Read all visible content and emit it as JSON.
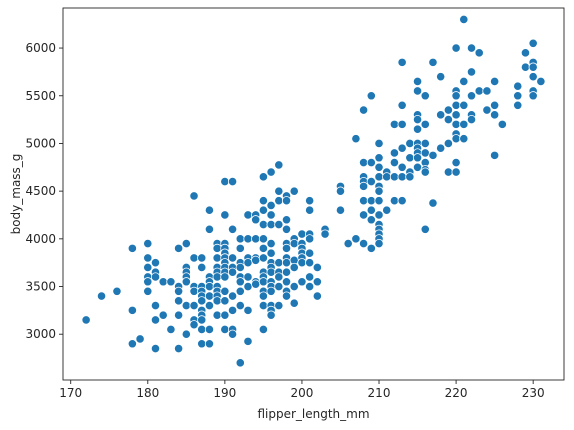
{
  "chart_data": {
    "type": "scatter",
    "xlabel": "flipper_length_mm",
    "ylabel": "body_mass_g",
    "xlim": [
      169,
      234
    ],
    "ylim": [
      2520,
      6420
    ],
    "xticks": [
      170,
      180,
      190,
      200,
      210,
      220,
      230
    ],
    "yticks": [
      3000,
      3500,
      4000,
      4500,
      5000,
      5500,
      6000
    ],
    "grid": false,
    "legend": "none",
    "marker_color": "#1f77b4",
    "points": [
      [
        172,
        3150
      ],
      [
        174,
        3400
      ],
      [
        176,
        3450
      ],
      [
        178,
        3250
      ],
      [
        178,
        2900
      ],
      [
        178,
        3900
      ],
      [
        179,
        2950
      ],
      [
        180,
        3950
      ],
      [
        180,
        3800
      ],
      [
        180,
        3700
      ],
      [
        180,
        3600
      ],
      [
        180,
        3550
      ],
      [
        180,
        3450
      ],
      [
        181,
        3750
      ],
      [
        181,
        3650
      ],
      [
        181,
        3600
      ],
      [
        181,
        3300
      ],
      [
        181,
        3150
      ],
      [
        181,
        2850
      ],
      [
        182,
        3200
      ],
      [
        182,
        3550
      ],
      [
        183,
        3050
      ],
      [
        183,
        3550
      ],
      [
        184,
        3900
      ],
      [
        184,
        3500
      ],
      [
        184,
        3450
      ],
      [
        184,
        3350
      ],
      [
        184,
        3200
      ],
      [
        184,
        2850
      ],
      [
        185,
        3950
      ],
      [
        185,
        3700
      ],
      [
        185,
        3650
      ],
      [
        185,
        3600
      ],
      [
        185,
        3550
      ],
      [
        185,
        3300
      ],
      [
        185,
        3000
      ],
      [
        186,
        4450
      ],
      [
        186,
        3800
      ],
      [
        186,
        3500
      ],
      [
        186,
        3450
      ],
      [
        186,
        3300
      ],
      [
        186,
        3150
      ],
      [
        186,
        3100
      ],
      [
        187,
        3800
      ],
      [
        187,
        3700
      ],
      [
        187,
        3500
      ],
      [
        187,
        3450
      ],
      [
        187,
        3400
      ],
      [
        187,
        3350
      ],
      [
        187,
        3250
      ],
      [
        187,
        3200
      ],
      [
        187,
        3150
      ],
      [
        187,
        3050
      ],
      [
        187,
        2900
      ],
      [
        188,
        4300
      ],
      [
        188,
        4100
      ],
      [
        188,
        3600
      ],
      [
        188,
        3550
      ],
      [
        188,
        3500
      ],
      [
        188,
        3400
      ],
      [
        188,
        3300
      ],
      [
        188,
        3050
      ],
      [
        188,
        2900
      ],
      [
        189,
        3950
      ],
      [
        189,
        3900
      ],
      [
        189,
        3800
      ],
      [
        189,
        3700
      ],
      [
        189,
        3650
      ],
      [
        189,
        3600
      ],
      [
        189,
        3500
      ],
      [
        189,
        3450
      ],
      [
        189,
        3400
      ],
      [
        189,
        3350
      ],
      [
        189,
        3200
      ],
      [
        190,
        4600
      ],
      [
        190,
        4250
      ],
      [
        190,
        3950
      ],
      [
        190,
        3900
      ],
      [
        190,
        3850
      ],
      [
        190,
        3800
      ],
      [
        190,
        3750
      ],
      [
        190,
        3700
      ],
      [
        190,
        3650
      ],
      [
        190,
        3600
      ],
      [
        190,
        3450
      ],
      [
        190,
        3350
      ],
      [
        190,
        3200
      ],
      [
        190,
        3050
      ],
      [
        191,
        4600
      ],
      [
        191,
        4100
      ],
      [
        191,
        3800
      ],
      [
        191,
        3700
      ],
      [
        191,
        3650
      ],
      [
        191,
        3400
      ],
      [
        191,
        3250
      ],
      [
        191,
        3050
      ],
      [
        191,
        3000
      ],
      [
        192,
        4000
      ],
      [
        192,
        3900
      ],
      [
        192,
        3750
      ],
      [
        192,
        3700
      ],
      [
        192,
        3600
      ],
      [
        192,
        3550
      ],
      [
        192,
        3450
      ],
      [
        192,
        3300
      ],
      [
        192,
        2700
      ],
      [
        193,
        4250
      ],
      [
        193,
        4000
      ],
      [
        193,
        3800
      ],
      [
        193,
        3750
      ],
      [
        193,
        3600
      ],
      [
        193,
        3500
      ],
      [
        193,
        3250
      ],
      [
        193,
        2925
      ],
      [
        194,
        4250
      ],
      [
        194,
        4200
      ],
      [
        194,
        4000
      ],
      [
        194,
        3800
      ],
      [
        194,
        3775
      ],
      [
        194,
        3550
      ],
      [
        194,
        3525
      ],
      [
        195,
        4650
      ],
      [
        195,
        4400
      ],
      [
        195,
        4300
      ],
      [
        195,
        4150
      ],
      [
        195,
        4000
      ],
      [
        195,
        3900
      ],
      [
        195,
        3800
      ],
      [
        195,
        3650
      ],
      [
        195,
        3600
      ],
      [
        195,
        3550
      ],
      [
        195,
        3450
      ],
      [
        195,
        3400
      ],
      [
        195,
        3300
      ],
      [
        195,
        3050
      ],
      [
        196,
        4700
      ],
      [
        196,
        4350
      ],
      [
        196,
        4250
      ],
      [
        196,
        4150
      ],
      [
        196,
        3950
      ],
      [
        196,
        3850
      ],
      [
        196,
        3750
      ],
      [
        196,
        3700
      ],
      [
        196,
        3650
      ],
      [
        196,
        3550
      ],
      [
        196,
        3500
      ],
      [
        196,
        3450
      ],
      [
        196,
        3300
      ],
      [
        196,
        3250
      ],
      [
        196,
        3200
      ],
      [
        197,
        4775
      ],
      [
        197,
        4500
      ],
      [
        197,
        4400
      ],
      [
        197,
        4150
      ],
      [
        197,
        3750
      ],
      [
        197,
        3650
      ],
      [
        197,
        3600
      ],
      [
        197,
        3500
      ],
      [
        197,
        3300
      ],
      [
        198,
        4450
      ],
      [
        198,
        4400
      ],
      [
        198,
        4200
      ],
      [
        198,
        4100
      ],
      [
        198,
        3950
      ],
      [
        198,
        3900
      ],
      [
        198,
        3800
      ],
      [
        198,
        3750
      ],
      [
        198,
        3650
      ],
      [
        198,
        3550
      ],
      [
        198,
        3450
      ],
      [
        198,
        3400
      ],
      [
        199,
        4500
      ],
      [
        199,
        4000
      ],
      [
        199,
        3950
      ],
      [
        199,
        3775
      ],
      [
        199,
        3700
      ],
      [
        199,
        3500
      ],
      [
        199,
        3325
      ],
      [
        200,
        4050
      ],
      [
        200,
        3950
      ],
      [
        200,
        3900
      ],
      [
        200,
        3850
      ],
      [
        200,
        3800
      ],
      [
        200,
        3750
      ],
      [
        200,
        3550
      ],
      [
        201,
        4400
      ],
      [
        201,
        4300
      ],
      [
        201,
        4050
      ],
      [
        201,
        4000
      ],
      [
        201,
        3850
      ],
      [
        201,
        3750
      ],
      [
        201,
        3600
      ],
      [
        201,
        3500
      ],
      [
        202,
        3700
      ],
      [
        202,
        3550
      ],
      [
        202,
        3400
      ],
      [
        203,
        4100
      ],
      [
        203,
        4050
      ],
      [
        205,
        4550
      ],
      [
        205,
        4500
      ],
      [
        205,
        4300
      ],
      [
        206,
        3950
      ],
      [
        207,
        5050
      ],
      [
        207,
        4000
      ],
      [
        208,
        5350
      ],
      [
        208,
        4800
      ],
      [
        208,
        4650
      ],
      [
        208,
        4600
      ],
      [
        208,
        4550
      ],
      [
        208,
        4400
      ],
      [
        208,
        4250
      ],
      [
        208,
        3950
      ],
      [
        209,
        5500
      ],
      [
        209,
        4800
      ],
      [
        209,
        4600
      ],
      [
        209,
        4400
      ],
      [
        209,
        4300
      ],
      [
        209,
        4200
      ],
      [
        209,
        3900
      ],
      [
        210,
        5000
      ],
      [
        210,
        4850
      ],
      [
        210,
        4750
      ],
      [
        210,
        4650
      ],
      [
        210,
        4550
      ],
      [
        210,
        4500
      ],
      [
        210,
        4400
      ],
      [
        210,
        4250
      ],
      [
        210,
        4150
      ],
      [
        210,
        4100
      ],
      [
        210,
        4050
      ],
      [
        210,
        4000
      ],
      [
        210,
        3950
      ],
      [
        211,
        4700
      ],
      [
        211,
        4650
      ],
      [
        211,
        4300
      ],
      [
        212,
        5200
      ],
      [
        212,
        4900
      ],
      [
        212,
        4800
      ],
      [
        212,
        4650
      ],
      [
        212,
        4400
      ],
      [
        213,
        5850
      ],
      [
        213,
        5400
      ],
      [
        213,
        5200
      ],
      [
        213,
        4950
      ],
      [
        213,
        4750
      ],
      [
        213,
        4650
      ],
      [
        213,
        4400
      ],
      [
        214,
        5000
      ],
      [
        214,
        4850
      ],
      [
        214,
        4700
      ],
      [
        214,
        4650
      ],
      [
        215,
        5650
      ],
      [
        215,
        5550
      ],
      [
        215,
        5300
      ],
      [
        215,
        5250
      ],
      [
        215,
        5150
      ],
      [
        215,
        5000
      ],
      [
        215,
        4950
      ],
      [
        215,
        4900
      ],
      [
        215,
        4850
      ],
      [
        215,
        4750
      ],
      [
        216,
        5500
      ],
      [
        216,
        5200
      ],
      [
        216,
        5000
      ],
      [
        216,
        4900
      ],
      [
        216,
        4800
      ],
      [
        216,
        4725
      ],
      [
        216,
        4700
      ],
      [
        216,
        4100
      ],
      [
        217,
        5850
      ],
      [
        217,
        4875
      ],
      [
        217,
        4375
      ],
      [
        218,
        5700
      ],
      [
        218,
        5300
      ],
      [
        218,
        4950
      ],
      [
        219,
        5350
      ],
      [
        219,
        5250
      ],
      [
        219,
        5000
      ],
      [
        219,
        4700
      ],
      [
        220,
        6000
      ],
      [
        220,
        5550
      ],
      [
        220,
        5500
      ],
      [
        220,
        5400
      ],
      [
        220,
        5300
      ],
      [
        220,
        5200
      ],
      [
        220,
        5100
      ],
      [
        220,
        5050
      ],
      [
        220,
        4800
      ],
      [
        220,
        4700
      ],
      [
        221,
        6300
      ],
      [
        221,
        5650
      ],
      [
        221,
        5400
      ],
      [
        221,
        5200
      ],
      [
        221,
        5050
      ],
      [
        222,
        6000
      ],
      [
        222,
        5750
      ],
      [
        222,
        5500
      ],
      [
        222,
        5300
      ],
      [
        222,
        5250
      ],
      [
        223,
        5950
      ],
      [
        223,
        5550
      ],
      [
        224,
        5550
      ],
      [
        224,
        5350
      ],
      [
        225,
        5650
      ],
      [
        225,
        5400
      ],
      [
        225,
        5300
      ],
      [
        225,
        4875
      ],
      [
        226,
        5200
      ],
      [
        228,
        5600
      ],
      [
        228,
        5500
      ],
      [
        228,
        5400
      ],
      [
        229,
        5950
      ],
      [
        229,
        5800
      ],
      [
        230,
        6050
      ],
      [
        230,
        5850
      ],
      [
        230,
        5800
      ],
      [
        230,
        5700
      ],
      [
        230,
        5550
      ],
      [
        230,
        5500
      ],
      [
        231,
        5650
      ]
    ]
  }
}
